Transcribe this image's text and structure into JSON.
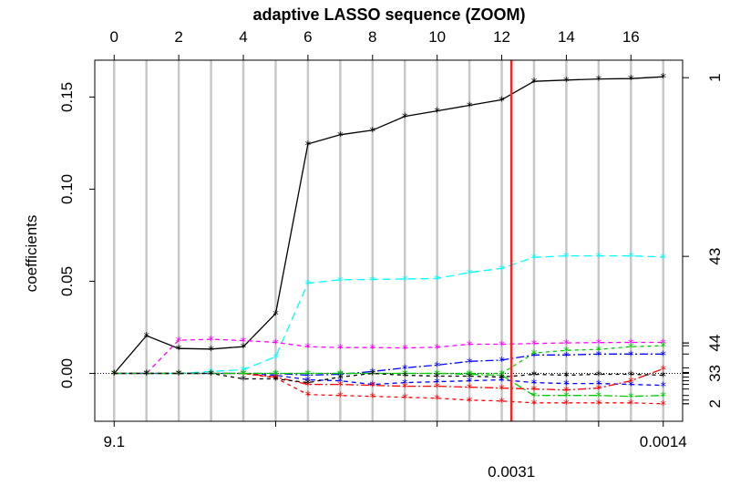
{
  "chart_data": {
    "type": "line",
    "title": "adaptive LASSO sequence (ZOOM)",
    "xlabel": "",
    "ylabel": "coefficients",
    "xlim": [
      -0.6,
      17.6
    ],
    "ylim": [
      -0.026,
      0.17
    ],
    "grid": true,
    "x": [
      0,
      1,
      2,
      3,
      4,
      5,
      6,
      7,
      8,
      9,
      10,
      11,
      12,
      13,
      14,
      15,
      16,
      17
    ],
    "top_ticks": [
      "0",
      "2",
      "4",
      "6",
      "8",
      "10",
      "12",
      "14",
      "16"
    ],
    "top_tick_positions": [
      0,
      2,
      4,
      6,
      8,
      10,
      12,
      14,
      16
    ],
    "y_ticks": [
      "0.00",
      "0.05",
      "0.10",
      "0.15"
    ],
    "y_tick_values": [
      0,
      0.05,
      0.1,
      0.15
    ],
    "bottom_ticks": [
      "9.1",
      "",
      "",
      "",
      "0.0014"
    ],
    "bottom_tick_positions": [
      0,
      5,
      10,
      15,
      17
    ],
    "right_labels": [
      {
        "text": "1",
        "y": 0.1605
      },
      {
        "text": "43",
        "y": 0.0635
      },
      {
        "text": "44",
        "y": 0.0165
      },
      {
        "text": "33",
        "y": 0.0
      },
      {
        "text": "2",
        "y": -0.0165
      }
    ],
    "right_extra_ticks": [
      0.0165,
      0.015,
      0.0105,
      0.003,
      0.0005,
      -0.002,
      -0.004,
      -0.006,
      -0.0085,
      -0.012,
      -0.0145,
      -0.0165
    ],
    "zero_line": 0,
    "vline": {
      "x": 12.3,
      "label": "0.0031",
      "color": "#ff2020"
    },
    "series": [
      {
        "color": "#000000",
        "dash": "",
        "values": [
          0,
          0.0205,
          0.0135,
          0.0132,
          0.0145,
          0.0325,
          0.1245,
          0.1295,
          0.132,
          0.1395,
          0.1425,
          0.1455,
          0.1485,
          0.1585,
          0.1592,
          0.1598,
          0.16,
          0.161
        ]
      },
      {
        "color": "#00ffff",
        "dash": "9,5",
        "values": [
          0,
          0,
          0,
          0.001,
          0.002,
          0.009,
          0.049,
          0.0508,
          0.051,
          0.0512,
          0.0515,
          0.0548,
          0.057,
          0.063,
          0.0638,
          0.0638,
          0.0638,
          0.0632
        ]
      },
      {
        "color": "#ff00ff",
        "dash": "5,4",
        "values": [
          0,
          0,
          0.018,
          0.0185,
          0.0178,
          0.0168,
          0.0145,
          0.014,
          0.014,
          0.0138,
          0.0142,
          0.0158,
          0.0158,
          0.0162,
          0.0165,
          0.0167,
          0.0168,
          0.0168
        ]
      },
      {
        "color": "#0000ff",
        "dash": "9,3,2,3",
        "values": [
          0,
          0,
          0,
          0,
          0,
          0,
          -0.001,
          -0.0005,
          0.001,
          0.003,
          0.0045,
          0.0065,
          0.0072,
          0.01,
          0.01,
          0.0105,
          0.0105,
          0.0105
        ]
      },
      {
        "color": "#0000ff",
        "dash": "5,4",
        "values": [
          0,
          0,
          0,
          0,
          0,
          -0.001,
          -0.0035,
          -0.004,
          -0.006,
          -0.005,
          -0.0045,
          -0.004,
          -0.0035,
          -0.005,
          -0.0055,
          -0.0055,
          -0.006,
          -0.0065
        ]
      },
      {
        "color": "#ff0000",
        "dash": "4,4",
        "values": [
          0,
          0,
          0,
          0,
          0,
          -0.0025,
          -0.0115,
          -0.012,
          -0.0125,
          -0.013,
          -0.0135,
          -0.0145,
          -0.015,
          -0.016,
          -0.016,
          -0.016,
          -0.016,
          -0.0165
        ]
      },
      {
        "color": "#ff0000",
        "dash": "9,3,2,3",
        "values": [
          0,
          0,
          0,
          0,
          0,
          -0.002,
          -0.006,
          -0.006,
          -0.0065,
          -0.007,
          -0.007,
          -0.0075,
          -0.008,
          -0.0085,
          -0.009,
          -0.008,
          -0.004,
          0.0025
        ]
      },
      {
        "color": "#00cc00",
        "dash": "4,4",
        "values": [
          0,
          0,
          0,
          0,
          0,
          0,
          0,
          0,
          0,
          0,
          0,
          0,
          0,
          0.011,
          0.0125,
          0.013,
          0.0145,
          0.015
        ]
      },
      {
        "color": "#00cc00",
        "dash": "9,3,2,3",
        "values": [
          0,
          0,
          0,
          0,
          0,
          0,
          0,
          0,
          0,
          0,
          0,
          -0.0005,
          -0.001,
          -0.012,
          -0.012,
          -0.012,
          -0.0125,
          -0.012
        ]
      },
      {
        "color": "#000000",
        "dash": "4,4",
        "values": [
          0,
          0,
          0,
          0,
          -0.003,
          -0.003,
          -0.005,
          -0.002,
          0.0,
          -0.001,
          -0.0015,
          -0.0015,
          -0.002,
          -0.0005,
          -0.001,
          -0.0005,
          -0.0005,
          -0.001
        ]
      }
    ]
  }
}
